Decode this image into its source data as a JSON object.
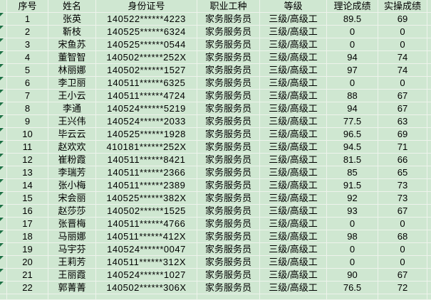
{
  "colors": {
    "cell_bg": "#cfe7d1",
    "gridline": "#eef3ec",
    "text": "#000000",
    "error_triangle": "#1e7145"
  },
  "icons": {
    "error_indicator": "triangle-top-left"
  },
  "table": {
    "headers": [
      "序号",
      "姓名",
      "身份证号",
      "职业工种",
      "等级",
      "理论成绩",
      "实操成绩"
    ],
    "rows": [
      {
        "index": "1",
        "name": "张英",
        "id": "140522******4223",
        "occupation": "家务服务员",
        "level": "三级/高级工",
        "theory": "89.5",
        "practical": "69"
      },
      {
        "index": "2",
        "name": "靳枝",
        "id": "140525******6324",
        "occupation": "家务服务员",
        "level": "三级/高级工",
        "theory": "0",
        "practical": "0"
      },
      {
        "index": "3",
        "name": "宋鱼苏",
        "id": "140525******0544",
        "occupation": "家务服务员",
        "level": "三级/高级工",
        "theory": "0",
        "practical": "0"
      },
      {
        "index": "4",
        "name": "董智智",
        "id": "140502******252X",
        "occupation": "家务服务员",
        "level": "三级/高级工",
        "theory": "94",
        "practical": "74"
      },
      {
        "index": "5",
        "name": "林丽娜",
        "id": "140502******1527",
        "occupation": "家务服务员",
        "level": "三级/高级工",
        "theory": "97",
        "practical": "74"
      },
      {
        "index": "6",
        "name": "李卫丽",
        "id": "140511******6325",
        "occupation": "家务服务员",
        "level": "三级/高级工",
        "theory": "0",
        "practical": "0"
      },
      {
        "index": "7",
        "name": "王小云",
        "id": "140511******4724",
        "occupation": "家务服务员",
        "level": "三级/高级工",
        "theory": "88",
        "practical": "67"
      },
      {
        "index": "8",
        "name": "李通",
        "id": "140524******5219",
        "occupation": "家务服务员",
        "level": "三级/高级工",
        "theory": "94",
        "practical": "67"
      },
      {
        "index": "9",
        "name": "王兴伟",
        "id": "140524******2033",
        "occupation": "家务服务员",
        "level": "三级/高级工",
        "theory": "77.5",
        "practical": "63"
      },
      {
        "index": "10",
        "name": "毕云云",
        "id": "140525******1928",
        "occupation": "家务服务员",
        "level": "三级/高级工",
        "theory": "96.5",
        "practical": "69"
      },
      {
        "index": "11",
        "name": "赵欢欢",
        "id": "410181******252X",
        "occupation": "家务服务员",
        "level": "三级/高级工",
        "theory": "94.5",
        "practical": "71"
      },
      {
        "index": "12",
        "name": "崔粉霞",
        "id": "140511******8421",
        "occupation": "家务服务员",
        "level": "三级/高级工",
        "theory": "81.5",
        "practical": "66"
      },
      {
        "index": "13",
        "name": "李瑞芳",
        "id": "140511******2366",
        "occupation": "家务服务员",
        "level": "三级/高级工",
        "theory": "85",
        "practical": "65"
      },
      {
        "index": "14",
        "name": "张小梅",
        "id": "140511******2389",
        "occupation": "家务服务员",
        "level": "三级/高级工",
        "theory": "91.5",
        "practical": "73"
      },
      {
        "index": "15",
        "name": "宋会丽",
        "id": "140525******382X",
        "occupation": "家务服务员",
        "level": "三级/高级工",
        "theory": "92",
        "practical": "73"
      },
      {
        "index": "16",
        "name": "赵莎莎",
        "id": "140502******1525",
        "occupation": "家务服务员",
        "level": "三级/高级工",
        "theory": "93",
        "practical": "67"
      },
      {
        "index": "17",
        "name": "张晋梅",
        "id": "140511******4766",
        "occupation": "家务服务员",
        "level": "三级/高级工",
        "theory": "0",
        "practical": "0"
      },
      {
        "index": "18",
        "name": "马丽娜",
        "id": "140511******412X",
        "occupation": "家务服务员",
        "level": "三级/高级工",
        "theory": "98",
        "practical": "68"
      },
      {
        "index": "19",
        "name": "马宇芬",
        "id": "140524******0047",
        "occupation": "家务服务员",
        "level": "三级/高级工",
        "theory": "0",
        "practical": "0"
      },
      {
        "index": "20",
        "name": "王莉芳",
        "id": "140511******312X",
        "occupation": "家务服务员",
        "level": "三级/高级工",
        "theory": "0",
        "practical": "0"
      },
      {
        "index": "21",
        "name": "王丽霞",
        "id": "140524******1027",
        "occupation": "家务服务员",
        "level": "三级/高级工",
        "theory": "90",
        "practical": "67"
      },
      {
        "index": "22",
        "name": "郭菁菁",
        "id": "140502******306X",
        "occupation": "家务服务员",
        "level": "三级/高级工",
        "theory": "76.5",
        "practical": "72"
      }
    ]
  }
}
